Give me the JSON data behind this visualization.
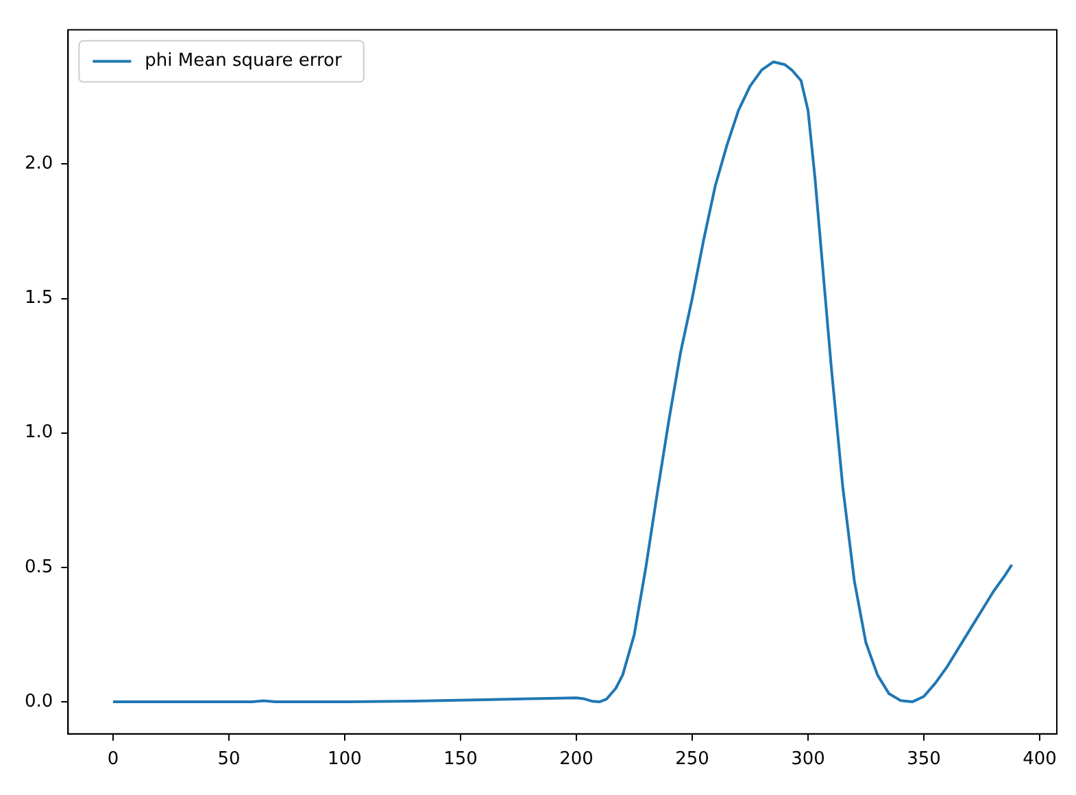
{
  "chart_data": {
    "type": "line",
    "legend": "top left",
    "grid": false,
    "marker": "none",
    "line_style": "solid",
    "xlim": [
      -19.4,
      407.4
    ],
    "ylim": [
      -0.119,
      2.499
    ],
    "xticks": [
      0,
      50,
      100,
      150,
      200,
      250,
      300,
      350,
      400
    ],
    "yticks": [
      {
        "value": 0,
        "label": "0.0"
      },
      {
        "value": 0.5,
        "label": "0.5"
      },
      {
        "value": 1,
        "label": "1.0"
      },
      {
        "value": 1.5,
        "label": "1.5"
      },
      {
        "value": 2,
        "label": "2.0"
      }
    ],
    "x": [
      0,
      20,
      40,
      60,
      65,
      70,
      100,
      130,
      160,
      200,
      203,
      207,
      210,
      213,
      217,
      220,
      225,
      230,
      235,
      240,
      245,
      250,
      255,
      260,
      265,
      270,
      275,
      280,
      285,
      290,
      293,
      297,
      300,
      303,
      306,
      310,
      315,
      320,
      325,
      330,
      335,
      340,
      345,
      350,
      355,
      360,
      365,
      370,
      375,
      380,
      385,
      388
    ],
    "series": [
      {
        "name": "phi Mean square error",
        "color": "#1f77b4",
        "values": [
          0,
          0,
          0,
          0,
          0.004,
          0,
          0,
          0.003,
          0.008,
          0.015,
          0.012,
          0.002,
          0,
          0.01,
          0.05,
          0.1,
          0.25,
          0.5,
          0.78,
          1.05,
          1.3,
          1.5,
          1.72,
          1.92,
          2.07,
          2.2,
          2.29,
          2.35,
          2.38,
          2.37,
          2.35,
          2.31,
          2.2,
          1.95,
          1.65,
          1.25,
          0.8,
          0.45,
          0.22,
          0.1,
          0.03,
          0.005,
          0,
          0.02,
          0.07,
          0.13,
          0.2,
          0.27,
          0.34,
          0.41,
          0.47,
          0.51
        ]
      }
    ]
  }
}
